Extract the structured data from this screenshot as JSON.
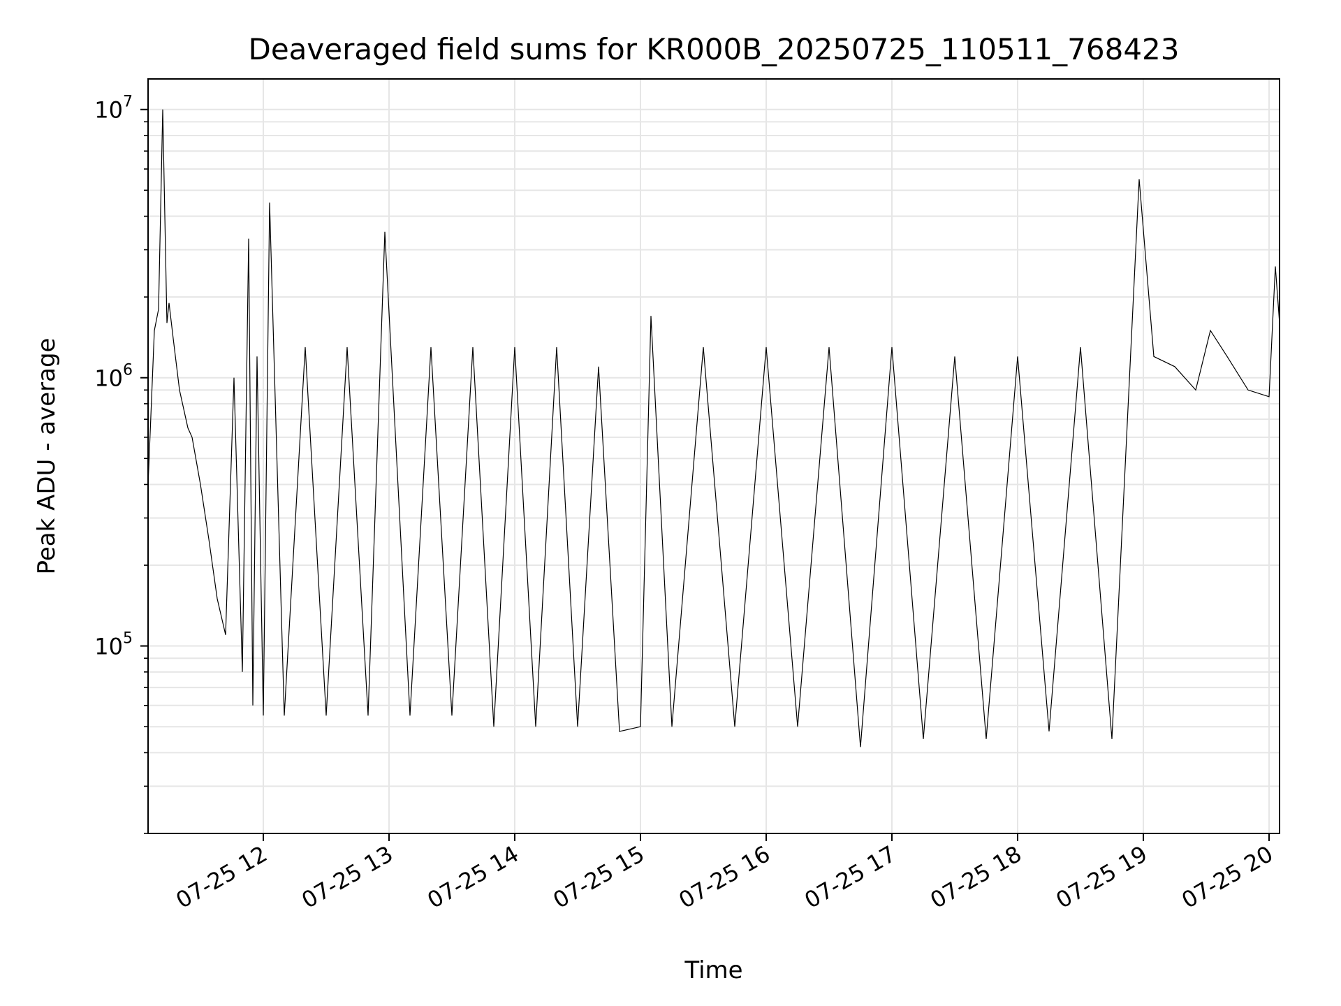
{
  "chart_data": {
    "type": "line",
    "title": "Deaveraged field sums for KR000B_20250725_110511_768423",
    "xlabel": "Time",
    "ylabel": "Peak ADU - average",
    "xlim": [
      "2025-07-25 11:05",
      "2025-07-25 20:05"
    ],
    "ylim": [
      20000,
      13000000
    ],
    "yscale": "log",
    "grid": true,
    "line_color": "#000000",
    "x_ticks": [
      {
        "value": "2025-07-25 12:00",
        "label": "07-25 12"
      },
      {
        "value": "2025-07-25 13:00",
        "label": "07-25 13"
      },
      {
        "value": "2025-07-25 14:00",
        "label": "07-25 14"
      },
      {
        "value": "2025-07-25 15:00",
        "label": "07-25 15"
      },
      {
        "value": "2025-07-25 16:00",
        "label": "07-25 16"
      },
      {
        "value": "2025-07-25 17:00",
        "label": "07-25 17"
      },
      {
        "value": "2025-07-25 18:00",
        "label": "07-25 18"
      },
      {
        "value": "2025-07-25 19:00",
        "label": "07-25 19"
      },
      {
        "value": "2025-07-25 20:00",
        "label": "07-25 20"
      }
    ],
    "y_ticks": [
      {
        "value": 100000,
        "base": "10",
        "exp": "5"
      },
      {
        "value": 1000000,
        "base": "10",
        "exp": "6"
      },
      {
        "value": 10000000,
        "base": "10",
        "exp": "7"
      }
    ],
    "series": [
      {
        "x": [
          "2025-07-25 11:05",
          "2025-07-25 11:08",
          "2025-07-25 11:10",
          "2025-07-25 11:12",
          "2025-07-25 11:14",
          "2025-07-25 11:15",
          "2025-07-25 11:17",
          "2025-07-25 11:20",
          "2025-07-25 11:24",
          "2025-07-25 11:26",
          "2025-07-25 11:30",
          "2025-07-25 11:34",
          "2025-07-25 11:38",
          "2025-07-25 11:42",
          "2025-07-25 11:46",
          "2025-07-25 11:50",
          "2025-07-25 11:53",
          "2025-07-25 11:55",
          "2025-07-25 11:57",
          "2025-07-25 12:00",
          "2025-07-25 12:03",
          "2025-07-25 12:10",
          "2025-07-25 12:20",
          "2025-07-25 12:30",
          "2025-07-25 12:40",
          "2025-07-25 12:50",
          "2025-07-25 12:58",
          "2025-07-25 13:10",
          "2025-07-25 13:20",
          "2025-07-25 13:30",
          "2025-07-25 13:40",
          "2025-07-25 13:50",
          "2025-07-25 14:00",
          "2025-07-25 14:10",
          "2025-07-25 14:20",
          "2025-07-25 14:30",
          "2025-07-25 14:40",
          "2025-07-25 14:50",
          "2025-07-25 15:00",
          "2025-07-25 15:05",
          "2025-07-25 15:15",
          "2025-07-25 15:30",
          "2025-07-25 15:45",
          "2025-07-25 16:00",
          "2025-07-25 16:15",
          "2025-07-25 16:30",
          "2025-07-25 16:45",
          "2025-07-25 17:00",
          "2025-07-25 17:15",
          "2025-07-25 17:30",
          "2025-07-25 17:45",
          "2025-07-25 18:00",
          "2025-07-25 18:15",
          "2025-07-25 18:30",
          "2025-07-25 18:45",
          "2025-07-25 18:58",
          "2025-07-25 19:05",
          "2025-07-25 19:15",
          "2025-07-25 19:25",
          "2025-07-25 19:32",
          "2025-07-25 19:40",
          "2025-07-25 19:50",
          "2025-07-25 20:00",
          "2025-07-25 20:03",
          "2025-07-25 20:05"
        ],
        "y": [
          400000,
          1500000,
          1800000,
          10000000,
          1600000,
          1900000,
          1400000,
          900000,
          650000,
          600000,
          400000,
          250000,
          150000,
          110000,
          1000000,
          80000,
          3300000,
          60000,
          1200000,
          55000,
          4500000,
          55000,
          1300000,
          55000,
          1300000,
          55000,
          3500000,
          55000,
          1300000,
          55000,
          1300000,
          50000,
          1300000,
          50000,
          1300000,
          50000,
          1100000,
          48000,
          50000,
          1700000,
          50000,
          1300000,
          50000,
          1300000,
          50000,
          1300000,
          42000,
          1300000,
          45000,
          1200000,
          45000,
          1200000,
          48000,
          1300000,
          45000,
          5500000,
          1200000,
          1100000,
          900000,
          1500000,
          1200000,
          900000,
          850000,
          2600000,
          1600000
        ]
      }
    ]
  }
}
